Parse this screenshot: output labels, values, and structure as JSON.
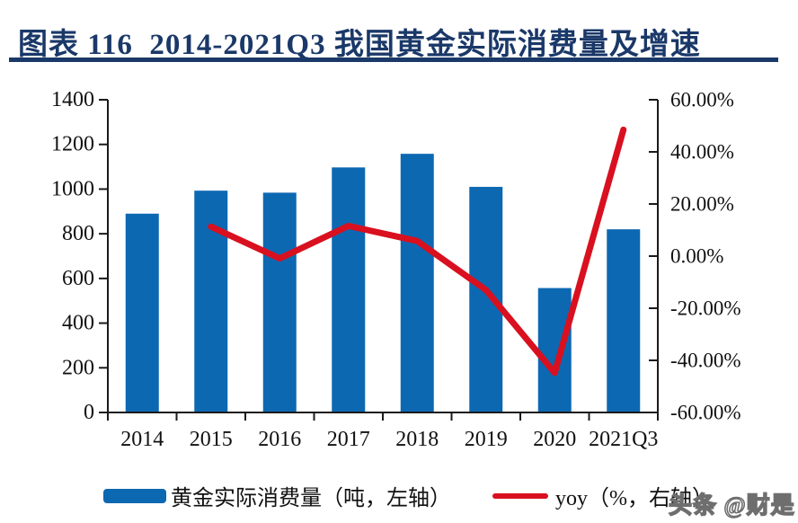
{
  "title": "图表 116  2014-2021Q3 我国黄金实际消费量及增速",
  "watermark": "头条 @财是",
  "colors": {
    "title_navy": "#1A3868",
    "bar_blue": "#0D68B2",
    "line_red": "#D9101F",
    "axis_black": "#1A1A1A",
    "watermark_gray": "#6E6E6E"
  },
  "legend": {
    "bar_label": "黄金实际消费量（吨，左轴）",
    "line_label": "yoy（%，右轴）"
  },
  "chart_data": {
    "type": "bar+line combo",
    "title": "2014-2021Q3 我国黄金实际消费量及增速",
    "categories": [
      "2014",
      "2015",
      "2016",
      "2017",
      "2018",
      "2019",
      "2020",
      "2021Q3"
    ],
    "series": [
      {
        "name": "黄金实际消费量（吨，左轴）",
        "type": "bar",
        "axis": "left",
        "unit": "吨",
        "values": [
          890,
          993,
          984,
          1097,
          1158,
          1010,
          557,
          820
        ]
      },
      {
        "name": "yoy（%，右轴）",
        "type": "line",
        "axis": "right",
        "unit": "%",
        "values": [
          null,
          11.3,
          -0.9,
          11.6,
          5.8,
          -13.0,
          -44.8,
          48.5
        ]
      }
    ],
    "left_axis": {
      "min": 0,
      "max": 1400,
      "step": 200,
      "tick_labels": [
        "0",
        "200",
        "400",
        "600",
        "800",
        "1000",
        "1200",
        "1400"
      ]
    },
    "right_axis": {
      "min": -60,
      "max": 60,
      "step": 20,
      "tick_labels": [
        "-60.00%",
        "-40.00%",
        "-20.00%",
        "0.00%",
        "20.00%",
        "40.00%",
        "60.00%"
      ]
    },
    "grid": false,
    "legend_position": "bottom"
  }
}
